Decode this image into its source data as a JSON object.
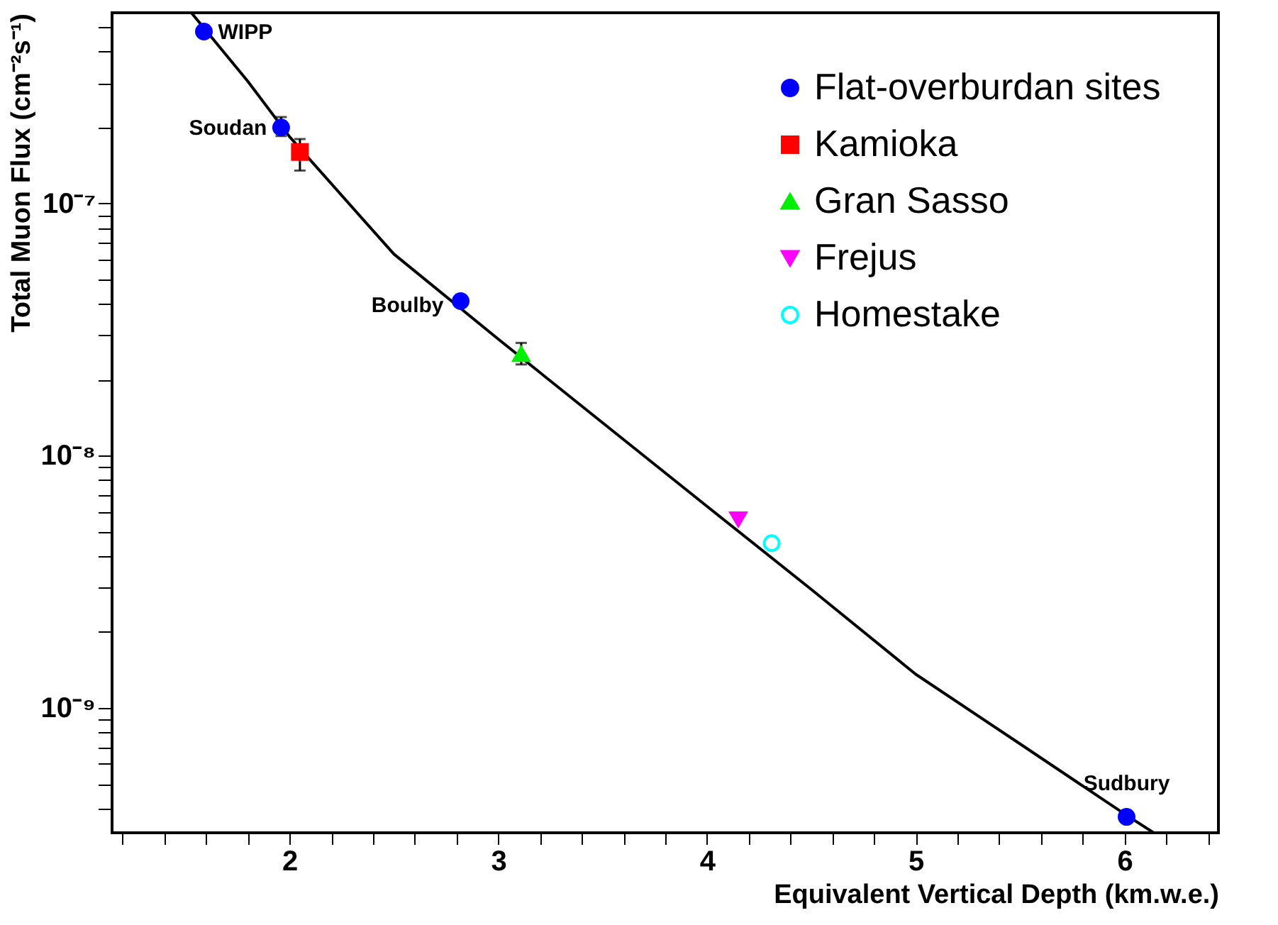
{
  "chart_data": {
    "type": "scatter",
    "xlabel": "Equivalent Vertical Depth (km.w.e.)",
    "ylabel": "Total Muon Flux (cm⁻²s⁻¹)",
    "log": "y",
    "grid": false,
    "legend": "top right",
    "xlim": [
      1.15,
      6.45
    ],
    "ylim": [
      3.2e-10,
      5.7e-07
    ],
    "xticks": [
      {
        "value": 1.2,
        "label": null
      },
      {
        "value": 1.4,
        "label": null
      },
      {
        "value": 1.6,
        "label": null
      },
      {
        "value": 1.8,
        "label": null
      },
      2,
      {
        "value": 2.2,
        "label": null
      },
      {
        "value": 2.4,
        "label": null
      },
      {
        "value": 2.6,
        "label": null
      },
      {
        "value": 2.8,
        "label": null
      },
      3,
      {
        "value": 3.2,
        "label": null
      },
      {
        "value": 3.4,
        "label": null
      },
      {
        "value": 3.6,
        "label": null
      },
      {
        "value": 3.8,
        "label": null
      },
      4,
      {
        "value": 4.2,
        "label": null
      },
      {
        "value": 4.4,
        "label": null
      },
      {
        "value": 4.6,
        "label": null
      },
      {
        "value": 4.8,
        "label": null
      },
      5,
      {
        "value": 5.2,
        "label": null
      },
      {
        "value": 5.4,
        "label": null
      },
      {
        "value": 5.6,
        "label": null
      },
      {
        "value": 5.8,
        "label": null
      },
      6,
      {
        "value": 6.2,
        "label": null
      },
      {
        "value": 6.4,
        "label": null
      }
    ],
    "yticks": [
      {
        "value": 4e-10,
        "label": null
      },
      {
        "value": 5e-10,
        "label": null
      },
      {
        "value": 6e-10,
        "label": null
      },
      {
        "value": 7e-10,
        "label": null
      },
      {
        "value": 8e-10,
        "label": null
      },
      {
        "value": 9e-10,
        "label": null
      },
      {
        "value": 1e-09,
        "label": "10⁻⁹"
      },
      {
        "value": 2e-09,
        "label": null
      },
      {
        "value": 3e-09,
        "label": null
      },
      {
        "value": 4e-09,
        "label": null
      },
      {
        "value": 5e-09,
        "label": null
      },
      {
        "value": 6e-09,
        "label": null
      },
      {
        "value": 7e-09,
        "label": null
      },
      {
        "value": 8e-09,
        "label": null
      },
      {
        "value": 9e-09,
        "label": null
      },
      {
        "value": 1e-08,
        "label": "10⁻⁸"
      },
      {
        "value": 2e-08,
        "label": null
      },
      {
        "value": 3e-08,
        "label": null
      },
      {
        "value": 4e-08,
        "label": null
      },
      {
        "value": 5e-08,
        "label": null
      },
      {
        "value": 6e-08,
        "label": null
      },
      {
        "value": 7e-08,
        "label": null
      },
      {
        "value": 8e-08,
        "label": null
      },
      {
        "value": 9e-08,
        "label": null
      },
      {
        "value": 1e-07,
        "label": "10⁻⁷"
      },
      {
        "value": 2e-07,
        "label": null
      },
      {
        "value": 3e-07,
        "label": null
      },
      {
        "value": 4e-07,
        "label": null
      },
      {
        "value": 5e-07,
        "label": null
      }
    ],
    "series": [
      {
        "type": "line",
        "color": "#000000",
        "marker": "none",
        "line_style": "solid",
        "x": [
          1.53,
          1.8,
          2.0,
          2.5,
          3.0,
          3.5,
          4.0,
          4.5,
          5.0,
          5.5,
          6.0,
          6.14
        ],
        "values": [
          5.7e-07,
          3.05e-07,
          1.84e-07,
          6.3e-08,
          2.9e-08,
          1.35e-08,
          6.3e-09,
          2.95e-09,
          1.36e-09,
          7.2e-10,
          3.8e-10,
          3.2e-10
        ]
      },
      {
        "name": "Flat-overburdan sites",
        "color": "#0000ff",
        "marker": "circle",
        "x": [
          1.59,
          1.96,
          2.82,
          6.01
        ],
        "values": [
          4.8e-07,
          2e-07,
          4.1e-08,
          3.7e-10
        ],
        "errors": [
          null,
          [
            1.85e-07,
            2.2e-07
          ],
          null,
          null
        ]
      },
      {
        "name": "Kamioka",
        "color": "#ff0000",
        "marker": "square",
        "x": [
          2.05
        ],
        "values": [
          1.6e-07
        ],
        "errors": [
          [
            1.35e-07,
            1.8e-07
          ]
        ]
      },
      {
        "name": "Gran Sasso",
        "color": "#00ee00",
        "marker": "triangle",
        "x": [
          3.11
        ],
        "values": [
          2.53e-08
        ],
        "errors": [
          [
            2.3e-08,
            2.8e-08
          ]
        ]
      },
      {
        "name": "Frejus",
        "color": "#ff00ff",
        "marker": "triangle-down",
        "x": [
          4.15
        ],
        "values": [
          5.6e-09
        ]
      },
      {
        "name": "Homestake",
        "color": "#00ffff",
        "marker": "circle-open",
        "x": [
          4.31
        ],
        "values": [
          4.5e-09
        ]
      }
    ],
    "annotations": [
      {
        "text": "WIPP",
        "x": 1.59,
        "y": 4.8e-07
      },
      {
        "text": "Soudan",
        "x": 1.96,
        "y": 2e-07
      },
      {
        "text": "Boulby",
        "x": 2.82,
        "y": 4.1e-08
      },
      {
        "text": "Sudbury",
        "x": 6.01,
        "y": 3.7e-10
      }
    ]
  }
}
